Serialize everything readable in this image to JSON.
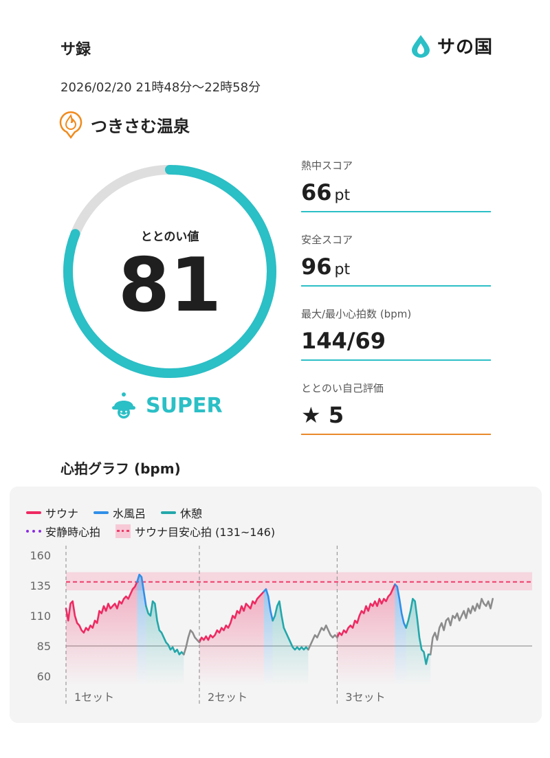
{
  "header": {
    "title": "サ録",
    "brand": "サの国"
  },
  "session": {
    "datetime": "2026/02/20 21時48分〜22時58分",
    "facility": "つきさむ温泉"
  },
  "score": {
    "label": "ととのい値",
    "value": "81",
    "fraction": 0.81,
    "rank": "SUPER"
  },
  "stats": [
    {
      "label": "熱中スコア",
      "value": "66",
      "unit": "pt"
    },
    {
      "label": "安全スコア",
      "value": "96",
      "unit": "pt"
    },
    {
      "label": "最大/最小心拍数 (bpm)",
      "value": "144/69",
      "unit": ""
    },
    {
      "label": "ととのい自己評価",
      "value": "★ 5",
      "unit": ""
    }
  ],
  "graph": {
    "title": "心拍グラフ (bpm)",
    "legend": {
      "sauna": "サウナ",
      "cold": "水風呂",
      "rest": "休憩",
      "resting_hr": "安静時心拍",
      "target": "サウナ目安心拍 (131~146)"
    },
    "sets": [
      "1セット",
      "2セット",
      "3セット"
    ]
  },
  "colors": {
    "accent": "#2bbfc6",
    "sauna": "#ee2a62",
    "cold": "#2f8fe8",
    "rest": "#23a7aa",
    "resting": "#8a2be2",
    "extra": "#8c8c8c",
    "self_eval_line": "#e8892a"
  },
  "chart_data": {
    "type": "line",
    "ylim": [
      60,
      160
    ],
    "yticks": [
      "160",
      "135",
      "110",
      "85",
      "60"
    ],
    "baseline": 85,
    "target_band": [
      131,
      146
    ],
    "target_line": 138,
    "series": [
      {
        "name": "サウナ",
        "segments": [
          [
            [
              0,
              116
            ],
            [
              1,
              106
            ],
            [
              2,
              120
            ],
            [
              3,
              122
            ],
            [
              4,
              110
            ],
            [
              5,
              104
            ],
            [
              6,
              102
            ],
            [
              7,
              98
            ],
            [
              8,
              96
            ],
            [
              9,
              100
            ],
            [
              10,
              98
            ],
            [
              11,
              102
            ],
            [
              12,
              100
            ],
            [
              13,
              106
            ],
            [
              14,
              104
            ],
            [
              15,
              114
            ],
            [
              16,
              112
            ],
            [
              17,
              118
            ],
            [
              18,
              114
            ],
            [
              19,
              120
            ],
            [
              20,
              116
            ],
            [
              21,
              118
            ],
            [
              22,
              120
            ],
            [
              23,
              116
            ],
            [
              24,
              122
            ],
            [
              25,
              120
            ],
            [
              26,
              124
            ],
            [
              27,
              126
            ],
            [
              28,
              124
            ],
            [
              29,
              128
            ],
            [
              30,
              132
            ],
            [
              31,
              134
            ],
            [
              32,
              138
            ]
          ],
          [
            [
              60,
              88
            ],
            [
              61,
              92
            ],
            [
              62,
              90
            ],
            [
              63,
              93
            ],
            [
              64,
              90
            ],
            [
              65,
              94
            ],
            [
              66,
              92
            ],
            [
              67,
              94
            ],
            [
              68,
              98
            ],
            [
              69,
              96
            ],
            [
              70,
              100
            ],
            [
              71,
              98
            ],
            [
              72,
              102
            ],
            [
              73,
              100
            ],
            [
              74,
              104
            ],
            [
              75,
              110
            ],
            [
              76,
              108
            ],
            [
              77,
              114
            ],
            [
              78,
              112
            ],
            [
              79,
              118
            ],
            [
              80,
              114
            ],
            [
              81,
              120
            ],
            [
              82,
              118
            ],
            [
              83,
              116
            ],
            [
              84,
              122
            ],
            [
              85,
              120
            ],
            [
              86,
              124
            ],
            [
              87,
              126
            ],
            [
              88,
              128
            ],
            [
              89,
              130
            ]
          ],
          [
            [
              122,
              92
            ],
            [
              123,
              96
            ],
            [
              124,
              94
            ],
            [
              125,
              98
            ],
            [
              126,
              96
            ],
            [
              127,
              100
            ],
            [
              128,
              102
            ],
            [
              129,
              100
            ],
            [
              130,
              106
            ],
            [
              131,
              104
            ],
            [
              132,
              110
            ],
            [
              133,
              114
            ],
            [
              134,
              112
            ],
            [
              135,
              118
            ],
            [
              136,
              114
            ],
            [
              137,
              120
            ],
            [
              138,
              118
            ],
            [
              139,
              122
            ],
            [
              140,
              118
            ],
            [
              141,
              124
            ],
            [
              142,
              120
            ],
            [
              143,
              124
            ],
            [
              144,
              122
            ],
            [
              145,
              126
            ],
            [
              146,
              128
            ],
            [
              147,
              132
            ],
            [
              148,
              136
            ]
          ]
        ]
      },
      {
        "name": "水風呂",
        "segments": [
          [
            [
              32,
              138
            ],
            [
              33,
              144
            ],
            [
              34,
              142
            ],
            [
              35,
              130
            ],
            [
              36,
              118
            ]
          ],
          [
            [
              89,
              130
            ],
            [
              90,
              132
            ],
            [
              91,
              126
            ],
            [
              92,
              114
            ],
            [
              93,
              106
            ]
          ],
          [
            [
              148,
              136
            ],
            [
              149,
              134
            ],
            [
              150,
              124
            ],
            [
              151,
              112
            ],
            [
              152,
              104
            ],
            [
              153,
              100
            ]
          ]
        ]
      },
      {
        "name": "休憩",
        "segments": [
          [
            [
              36,
              118
            ],
            [
              37,
              112
            ],
            [
              38,
              110
            ],
            [
              39,
              122
            ],
            [
              40,
              120
            ],
            [
              41,
              106
            ],
            [
              42,
              98
            ],
            [
              43,
              96
            ],
            [
              44,
              92
            ],
            [
              45,
              88
            ],
            [
              46,
              86
            ],
            [
              47,
              82
            ],
            [
              48,
              84
            ],
            [
              49,
              80
            ],
            [
              50,
              82
            ],
            [
              51,
              78
            ],
            [
              52,
              80
            ],
            [
              53,
              78
            ]
          ],
          [
            [
              93,
              106
            ],
            [
              94,
              110
            ],
            [
              95,
              118
            ],
            [
              96,
              122
            ],
            [
              97,
              110
            ],
            [
              98,
              100
            ],
            [
              99,
              96
            ],
            [
              100,
              92
            ],
            [
              101,
              88
            ],
            [
              102,
              84
            ],
            [
              103,
              82
            ],
            [
              104,
              84
            ],
            [
              105,
              82
            ],
            [
              106,
              84
            ],
            [
              107,
              82
            ],
            [
              108,
              84
            ],
            [
              109,
              82
            ]
          ],
          [
            [
              153,
              100
            ],
            [
              154,
              106
            ],
            [
              155,
              114
            ],
            [
              156,
              124
            ],
            [
              157,
              122
            ],
            [
              158,
              108
            ],
            [
              159,
              92
            ],
            [
              160,
              82
            ],
            [
              161,
              80
            ],
            [
              162,
              70
            ],
            [
              163,
              78
            ],
            [
              164,
              78
            ]
          ]
        ]
      },
      {
        "name": "その他",
        "segments": [
          [
            [
              53,
              78
            ],
            [
              54,
              84
            ],
            [
              55,
              92
            ],
            [
              56,
              98
            ],
            [
              57,
              96
            ],
            [
              58,
              92
            ],
            [
              59,
              90
            ],
            [
              60,
              88
            ]
          ],
          [
            [
              109,
              82
            ],
            [
              110,
              86
            ],
            [
              111,
              90
            ],
            [
              112,
              94
            ],
            [
              113,
              92
            ],
            [
              114,
              96
            ],
            [
              115,
              100
            ],
            [
              116,
              98
            ],
            [
              117,
              102
            ],
            [
              118,
              98
            ],
            [
              119,
              94
            ],
            [
              120,
              92
            ],
            [
              121,
              94
            ],
            [
              122,
              92
            ]
          ],
          [
            [
              164,
              78
            ],
            [
              165,
              92
            ],
            [
              166,
              96
            ],
            [
              167,
              90
            ],
            [
              168,
              100
            ],
            [
              169,
              104
            ],
            [
              170,
              98
            ],
            [
              171,
              106
            ],
            [
              172,
              108
            ],
            [
              173,
              102
            ],
            [
              174,
              110
            ],
            [
              175,
              108
            ],
            [
              176,
              112
            ],
            [
              177,
              106
            ],
            [
              178,
              110
            ],
            [
              179,
              114
            ],
            [
              180,
              108
            ],
            [
              181,
              116
            ],
            [
              182,
              112
            ],
            [
              183,
              118
            ],
            [
              184,
              114
            ],
            [
              185,
              120
            ],
            [
              186,
              116
            ],
            [
              187,
              124
            ],
            [
              188,
              120
            ],
            [
              189,
              118
            ],
            [
              190,
              122
            ],
            [
              191,
              116
            ],
            [
              192,
              124
            ]
          ]
        ]
      }
    ],
    "set_starts": [
      0,
      60,
      122
    ],
    "x_max": 206
  }
}
